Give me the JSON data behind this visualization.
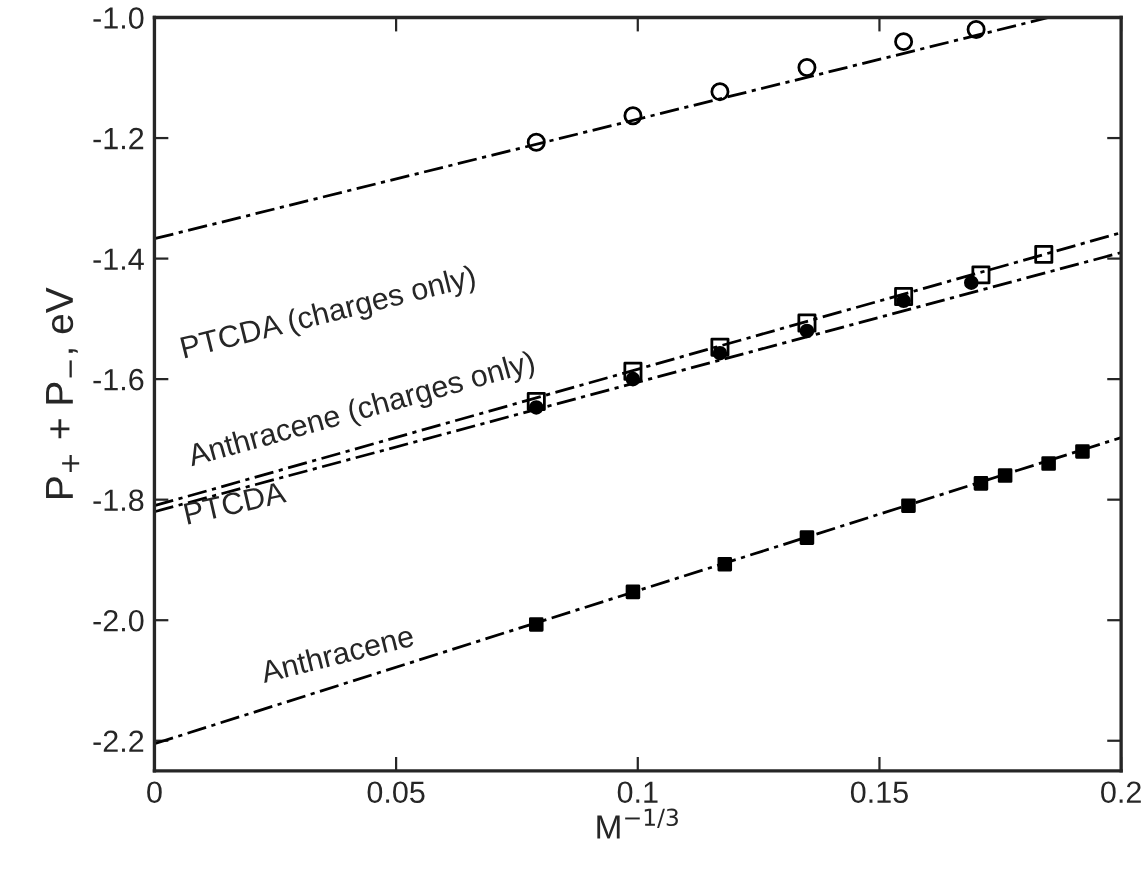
{
  "chart_data": {
    "type": "scatter",
    "xlabel": "M$^{−1/3}$",
    "ylabel": "P$_{+}$ + P$_{−}$, eV",
    "xlim": [
      0,
      0.2
    ],
    "ylim": [
      -2.25,
      -1.0
    ],
    "xticks": [
      0,
      0.05,
      0.1,
      0.15,
      0.2
    ],
    "yticks": [
      {
        "value": -2.2,
        "label": "-2.2"
      },
      {
        "value": -2.0,
        "label": "-2.0"
      },
      {
        "value": -1.8,
        "label": "-1.8"
      },
      {
        "value": -1.6,
        "label": "-1.6"
      },
      {
        "value": -1.4,
        "label": "-1.4"
      },
      {
        "value": -1.2,
        "label": "-1.2"
      },
      {
        "value": -1.0,
        "label": "-1.0"
      }
    ],
    "grid": false,
    "legend": false,
    "series": [
      {
        "marker": "circle",
        "color": "#000000",
        "x": [
          0.079,
          0.099,
          0.117,
          0.135,
          0.155,
          0.17
        ],
        "values": [
          -1.207,
          -1.163,
          -1.123,
          -1.083,
          -1.04,
          -1.02
        ]
      },
      {
        "marker": "square",
        "color": "#000000",
        "x": [
          0.079,
          0.099,
          0.117,
          0.135,
          0.155,
          0.171,
          0.184
        ],
        "values": [
          -1.637,
          -1.587,
          -1.547,
          -1.507,
          -1.463,
          -1.427,
          -1.393
        ]
      },
      {
        "marker": "circle",
        "color": "#000000",
        "x": [
          0.079,
          0.099,
          0.117,
          0.135,
          0.155,
          0.169
        ],
        "values": [
          -1.647,
          -1.6,
          -1.557,
          -1.52,
          -1.47,
          -1.44
        ]
      },
      {
        "marker": "square",
        "color": "#000000",
        "x": [
          0.079,
          0.099,
          0.118,
          0.135,
          0.156,
          0.171,
          0.176,
          0.185,
          0.192
        ],
        "values": [
          -2.007,
          -1.953,
          -1.907,
          -1.863,
          -1.81,
          -1.773,
          -1.76,
          -1.74,
          -1.72
        ]
      },
      {
        "type": "line",
        "line_style": "dashed",
        "color": "#000000",
        "x": [
          0,
          0.185
        ],
        "values": [
          -1.367,
          -1.0
        ]
      },
      {
        "type": "line",
        "line_style": "dashed",
        "color": "#000000",
        "x": [
          0,
          0.2
        ],
        "values": [
          -1.81,
          -1.357
        ]
      },
      {
        "type": "line",
        "line_style": "dashed",
        "color": "#000000",
        "x": [
          0,
          0.2
        ],
        "values": [
          -1.82,
          -1.39
        ]
      },
      {
        "type": "line",
        "line_style": "dashed",
        "color": "#000000",
        "x": [
          0,
          0.2
        ],
        "values": [
          -2.205,
          -1.697
        ]
      }
    ],
    "annotations": [
      "PTCDA (charges only)",
      "Anthracene (charges only)",
      "PTCDA",
      "Anthracene"
    ]
  }
}
